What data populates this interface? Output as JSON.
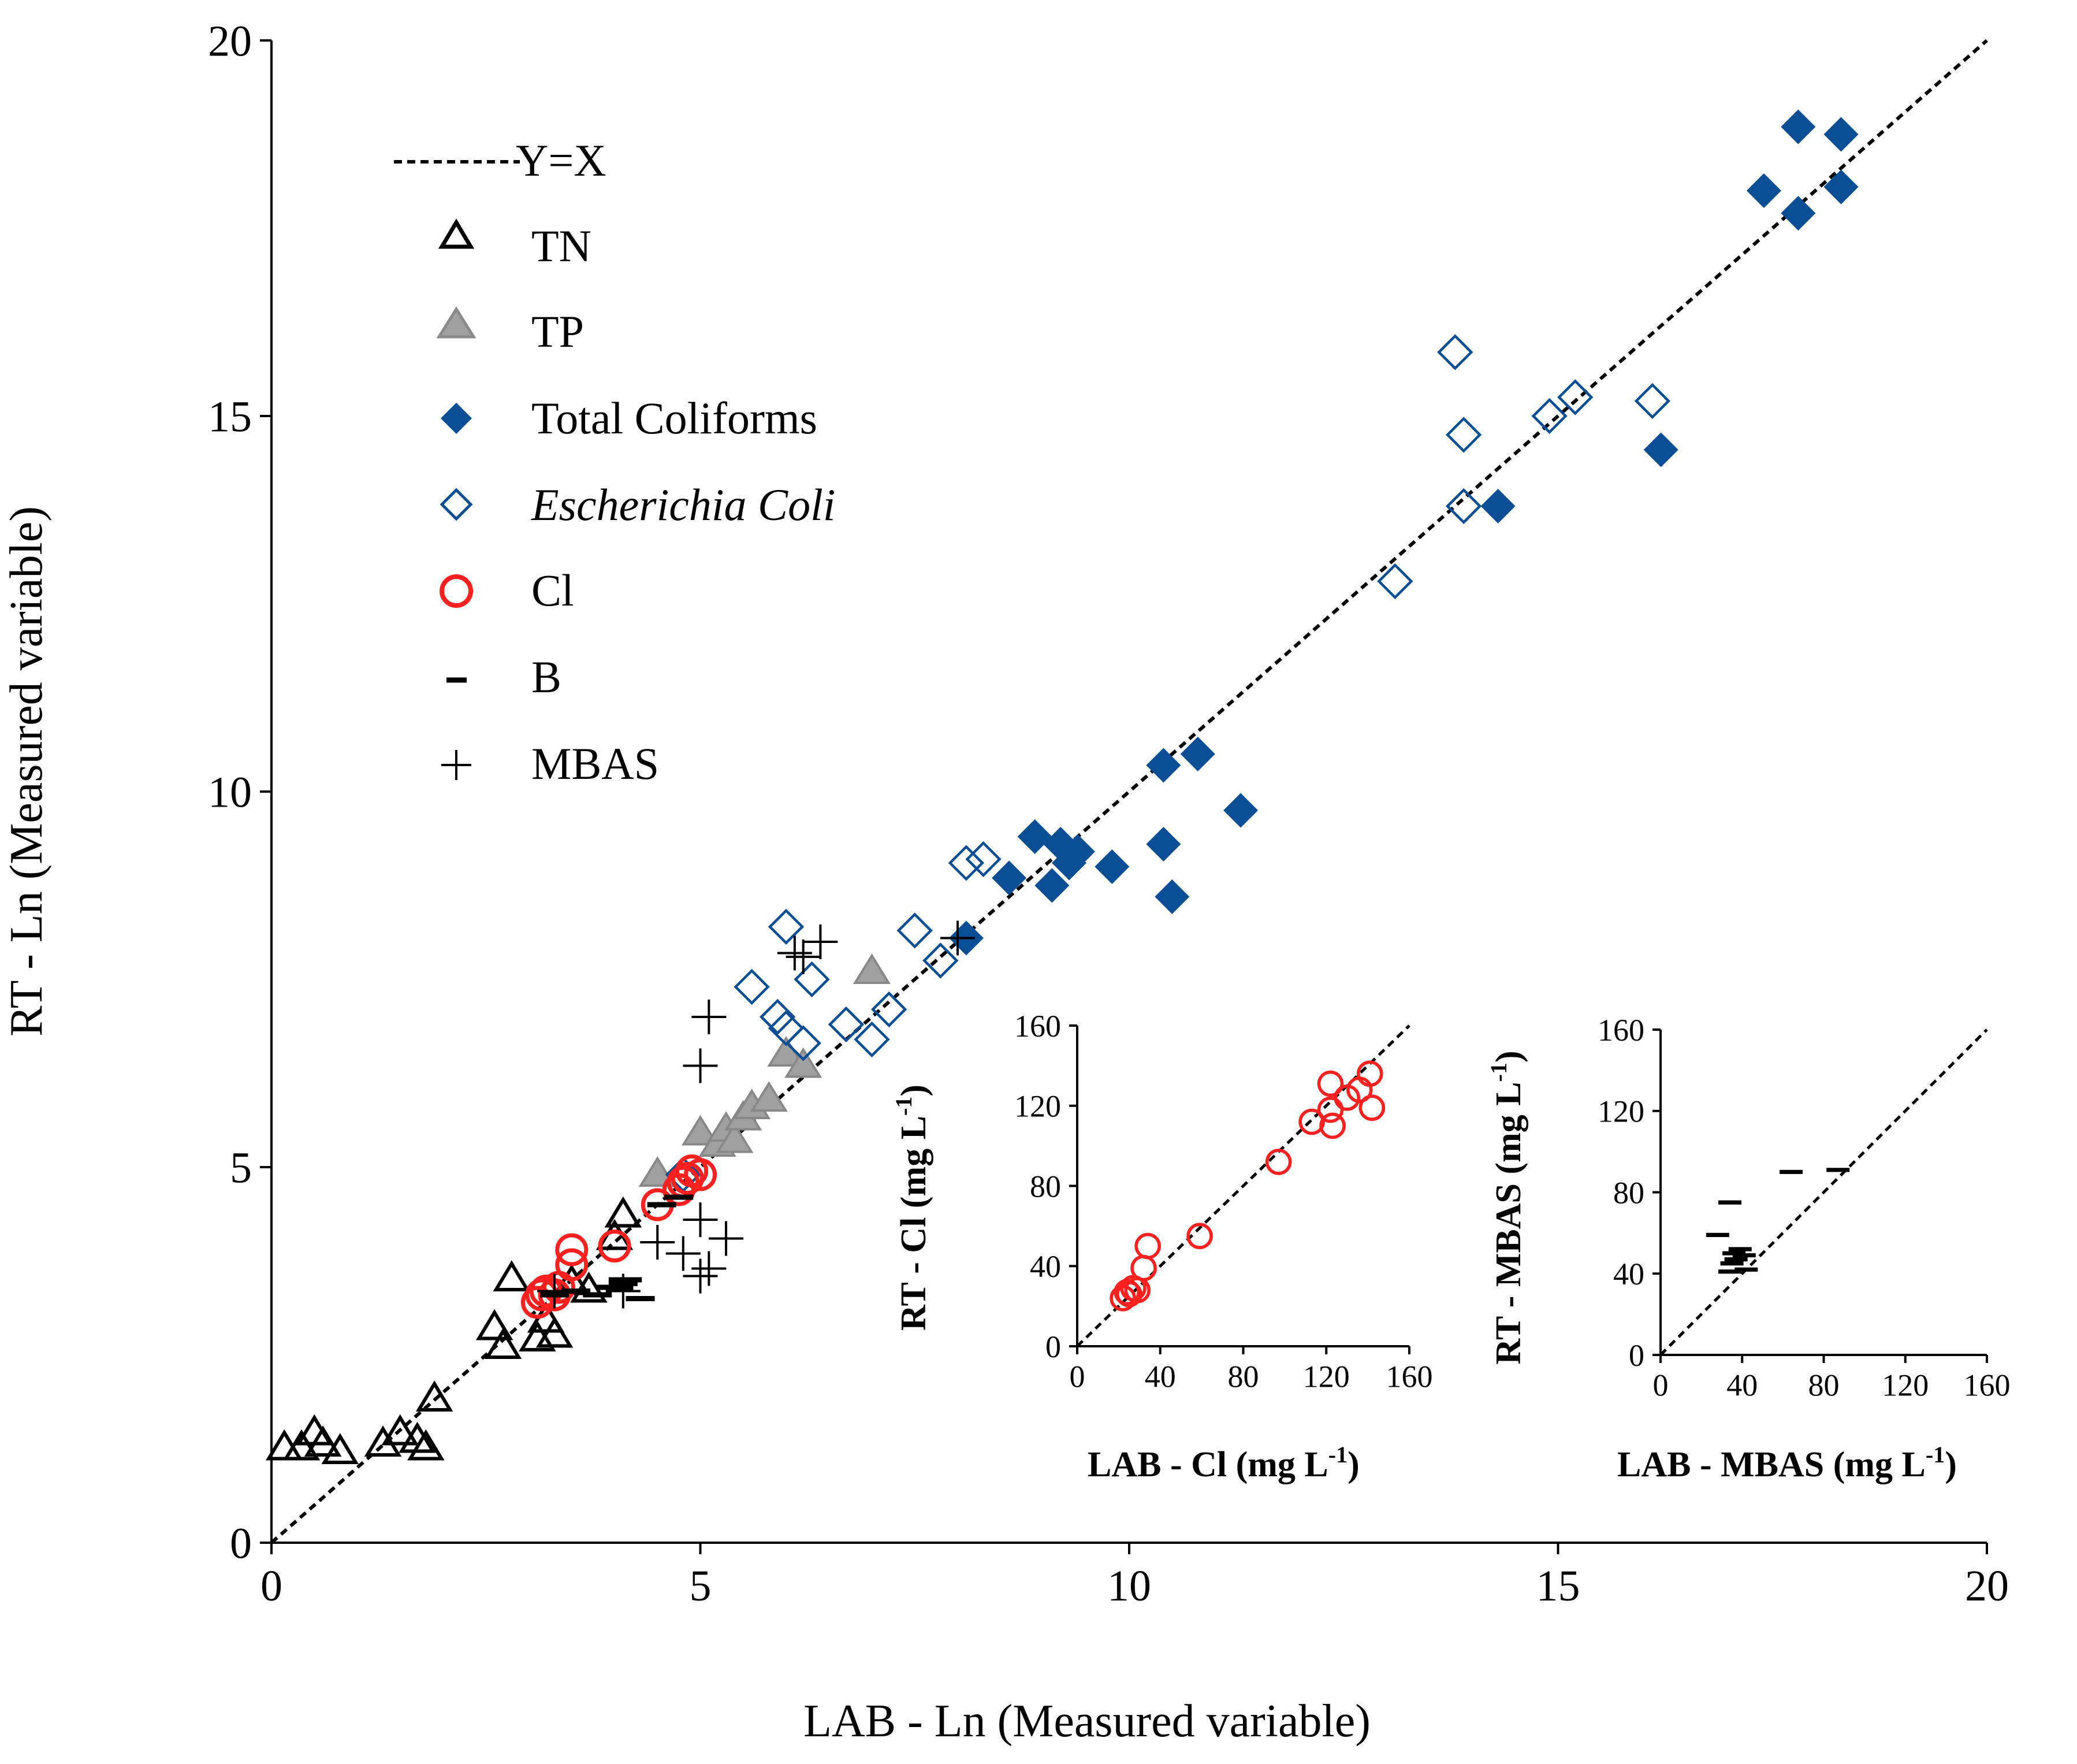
{
  "chart_data": [
    {
      "type": "scatter",
      "xlabel": "LAB - Ln (Measured variable)",
      "ylabel": "RT - Ln (Measured variable)",
      "xlim": [
        0,
        20
      ],
      "ylim": [
        0,
        20
      ],
      "xticks": [
        0,
        5,
        10,
        15,
        20
      ],
      "yticks": [
        0,
        5,
        10,
        15,
        20
      ],
      "grid": false,
      "legend_position": "top-left",
      "legend": {
        "yx": "Y=X",
        "tn": "TN",
        "tp": "TP",
        "tc": "Total Coliforms",
        "ec": "Escherichia Coli",
        "cl": "Cl",
        "b": "B",
        "mbas": "MBAS"
      },
      "reference_line": {
        "name": "Y=X",
        "from": [
          0,
          0
        ],
        "to": [
          20,
          20
        ]
      },
      "series": [
        {
          "name": "TN",
          "marker": "triangle-open",
          "color": "#000000",
          "points": [
            [
              0.15,
              1.25
            ],
            [
              0.35,
              1.25
            ],
            [
              0.5,
              1.45
            ],
            [
              0.6,
              1.3
            ],
            [
              0.8,
              1.2
            ],
            [
              1.3,
              1.3
            ],
            [
              1.5,
              1.45
            ],
            [
              1.7,
              1.35
            ],
            [
              1.8,
              1.25
            ],
            [
              1.9,
              1.9
            ],
            [
              2.6,
              2.85
            ],
            [
              2.7,
              2.6
            ],
            [
              2.8,
              3.5
            ],
            [
              3.1,
              2.7
            ],
            [
              3.2,
              2.95
            ],
            [
              3.3,
              2.75
            ],
            [
              3.5,
              3.45
            ],
            [
              3.7,
              3.35
            ],
            [
              4.0,
              4.05
            ],
            [
              4.1,
              4.35
            ]
          ]
        },
        {
          "name": "TP",
          "marker": "triangle-filled",
          "color": "#a0a0a0",
          "points": [
            [
              4.5,
              4.9
            ],
            [
              5.0,
              5.45
            ],
            [
              5.2,
              5.3
            ],
            [
              5.3,
              5.5
            ],
            [
              5.4,
              5.35
            ],
            [
              5.5,
              5.65
            ],
            [
              5.6,
              5.8
            ],
            [
              5.8,
              5.9
            ],
            [
              6.0,
              6.5
            ],
            [
              6.2,
              6.35
            ],
            [
              7.0,
              7.6
            ]
          ]
        },
        {
          "name": "Total Coliforms",
          "marker": "diamond-filled",
          "color": "#0a4f96",
          "points": [
            [
              8.1,
              8.05
            ],
            [
              8.6,
              8.85
            ],
            [
              8.9,
              9.4
            ],
            [
              9.1,
              8.75
            ],
            [
              9.2,
              9.3
            ],
            [
              9.3,
              9.05
            ],
            [
              9.4,
              9.2
            ],
            [
              9.8,
              9.0
            ],
            [
              10.4,
              10.35
            ],
            [
              10.4,
              9.3
            ],
            [
              10.5,
              8.6
            ],
            [
              10.8,
              10.5
            ],
            [
              11.3,
              9.75
            ],
            [
              14.3,
              13.8
            ],
            [
              16.2,
              14.55
            ],
            [
              17.4,
              18.0
            ],
            [
              17.8,
              17.7
            ],
            [
              17.8,
              18.85
            ],
            [
              18.3,
              18.75
            ],
            [
              18.3,
              18.05
            ]
          ]
        },
        {
          "name": "Escherichia Coli",
          "marker": "diamond-open",
          "color": "#0a4f96",
          "points": [
            [
              4.8,
              4.9
            ],
            [
              5.6,
              7.4
            ],
            [
              5.9,
              7.0
            ],
            [
              6.0,
              6.85
            ],
            [
              6.0,
              8.2
            ],
            [
              6.2,
              6.65
            ],
            [
              6.3,
              7.5
            ],
            [
              6.7,
              6.9
            ],
            [
              7.0,
              6.7
            ],
            [
              7.2,
              7.1
            ],
            [
              7.5,
              8.15
            ],
            [
              7.8,
              7.75
            ],
            [
              8.1,
              9.05
            ],
            [
              8.3,
              9.1
            ],
            [
              13.1,
              12.8
            ],
            [
              13.8,
              15.85
            ],
            [
              13.9,
              14.75
            ],
            [
              13.9,
              13.8
            ],
            [
              14.9,
              15.0
            ],
            [
              15.2,
              15.25
            ],
            [
              16.1,
              15.2
            ]
          ]
        },
        {
          "name": "Cl",
          "marker": "circle-open",
          "color": "#ff2020",
          "points": [
            [
              3.1,
              3.2
            ],
            [
              3.15,
              3.3
            ],
            [
              3.2,
              3.35
            ],
            [
              3.3,
              3.3
            ],
            [
              3.35,
              3.4
            ],
            [
              3.5,
              3.7
            ],
            [
              3.5,
              3.9
            ],
            [
              4.0,
              3.95
            ],
            [
              4.5,
              4.5
            ],
            [
              4.75,
              4.7
            ],
            [
              4.8,
              4.8
            ],
            [
              4.85,
              4.85
            ],
            [
              4.9,
              4.95
            ],
            [
              5.0,
              4.9
            ]
          ]
        },
        {
          "name": "B",
          "marker": "dash",
          "color": "#000000",
          "points": [
            [
              3.3,
              3.3
            ],
            [
              3.55,
              3.35
            ],
            [
              3.8,
              3.3
            ],
            [
              3.95,
              3.4
            ],
            [
              4.05,
              3.4
            ],
            [
              4.1,
              3.5
            ],
            [
              4.15,
              3.5
            ],
            [
              4.1,
              3.45
            ],
            [
              4.3,
              3.25
            ],
            [
              4.55,
              4.5
            ],
            [
              4.75,
              4.6
            ]
          ]
        },
        {
          "name": "MBAS",
          "marker": "plus",
          "color": "#000000",
          "points": [
            [
              3.3,
              3.35
            ],
            [
              4.1,
              3.35
            ],
            [
              4.5,
              4.0
            ],
            [
              4.8,
              3.85
            ],
            [
              5.0,
              4.3
            ],
            [
              5.0,
              3.55
            ],
            [
              5.1,
              3.65
            ],
            [
              5.3,
              4.05
            ],
            [
              5.0,
              6.35
            ],
            [
              5.1,
              7.0
            ],
            [
              6.1,
              7.85
            ],
            [
              6.2,
              7.8
            ],
            [
              6.4,
              8.0
            ],
            [
              8.0,
              8.05
            ]
          ]
        }
      ]
    },
    {
      "type": "scatter",
      "inset": "Cl",
      "xlabel": "LAB - Cl  (mg L",
      "xlabel_sup": "-1",
      "xlabel_end": ")",
      "ylabel": "RT - Cl  (mg L",
      "ylabel_sup": "-1",
      "ylabel_end": ")",
      "xlim": [
        0,
        160
      ],
      "ylim": [
        0,
        160
      ],
      "xticks": [
        0,
        40,
        80,
        120,
        160
      ],
      "yticks": [
        0,
        40,
        80,
        120,
        160
      ],
      "reference_line": {
        "from": [
          0,
          0
        ],
        "to": [
          160,
          160
        ]
      },
      "series": [
        {
          "name": "Cl",
          "marker": "circle-open",
          "color": "#ff2020",
          "points": [
            [
              22,
              24
            ],
            [
              24,
              27
            ],
            [
              25,
              26
            ],
            [
              27,
              29
            ],
            [
              29,
              28
            ],
            [
              32,
              39
            ],
            [
              34,
              50
            ],
            [
              59,
              55
            ],
            [
              97,
              92
            ],
            [
              113,
              112
            ],
            [
              122,
              131
            ],
            [
              122,
              118
            ],
            [
              123,
              110
            ],
            [
              130,
              124
            ],
            [
              136,
              128
            ],
            [
              141,
              136
            ],
            [
              142,
              119
            ]
          ]
        }
      ]
    },
    {
      "type": "scatter",
      "inset": "MBAS",
      "xlabel": "LAB - MBAS (mg L",
      "xlabel_sup": "-1",
      "xlabel_end": ")",
      "ylabel": "RT - MBAS  (mg L",
      "ylabel_sup": "-1",
      "ylabel_end": ")",
      "xlim": [
        0,
        160
      ],
      "ylim": [
        0,
        160
      ],
      "xticks": [
        0,
        40,
        80,
        120,
        160
      ],
      "yticks": [
        0,
        40,
        80,
        120,
        160
      ],
      "reference_line": {
        "from": [
          0,
          0
        ],
        "to": [
          160,
          160
        ]
      },
      "series": [
        {
          "name": "MBAS",
          "marker": "dash",
          "color": "#000000",
          "points": [
            [
              28,
              59
            ],
            [
              34,
              75
            ],
            [
              34,
              41
            ],
            [
              35,
              45
            ],
            [
              36,
              50
            ],
            [
              37,
              47
            ],
            [
              39,
              52
            ],
            [
              41,
              49
            ],
            [
              42,
              42
            ],
            [
              64,
              90
            ],
            [
              87,
              91
            ]
          ]
        }
      ]
    }
  ]
}
